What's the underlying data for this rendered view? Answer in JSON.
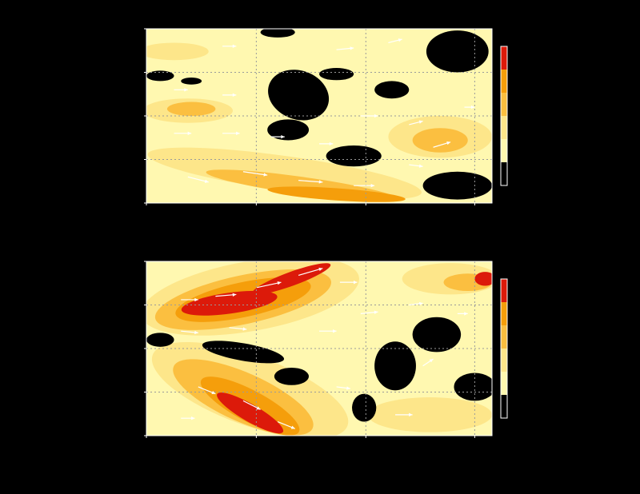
{
  "figure": {
    "background": "#000000"
  },
  "chart_data": [
    {
      "type": "heatmap",
      "panel": "top",
      "title": "",
      "xlabel": "",
      "ylabel": "",
      "xlim": [
        0,
        1
      ],
      "ylim": [
        0,
        1
      ],
      "grid": true,
      "levels": [
        0,
        1,
        2,
        3,
        4,
        5
      ],
      "colorbar": {
        "colors": [
          "#000000",
          "#fff8b0",
          "#fde68a",
          "#fbbf40",
          "#f59e0b",
          "#dc1a0a"
        ]
      },
      "palette": {
        "pale": "#fff8b0",
        "light": "#fde68a",
        "mid": "#fbbf40",
        "orange": "#f59e0b",
        "red": "#dc1a0a",
        "vector": "#ffffff"
      },
      "regions": [
        {
          "level": 2,
          "x": 0.12,
          "y": 0.47,
          "rx": 0.13,
          "ry": 0.07,
          "rot": 0
        },
        {
          "level": 2,
          "x": 0.08,
          "y": 0.13,
          "rx": 0.1,
          "ry": 0.05,
          "rot": 0
        },
        {
          "level": 2,
          "x": 0.85,
          "y": 0.62,
          "rx": 0.15,
          "ry": 0.12,
          "rot": 0
        },
        {
          "level": 2,
          "x": 0.4,
          "y": 0.83,
          "rx": 0.4,
          "ry": 0.1,
          "rot": 8
        },
        {
          "level": 3,
          "x": 0.13,
          "y": 0.46,
          "rx": 0.07,
          "ry": 0.04,
          "rot": 0
        },
        {
          "level": 3,
          "x": 0.85,
          "y": 0.64,
          "rx": 0.08,
          "ry": 0.07,
          "rot": 0
        },
        {
          "level": 3,
          "x": 0.45,
          "y": 0.9,
          "rx": 0.28,
          "ry": 0.05,
          "rot": 8
        },
        {
          "level": 4,
          "x": 0.55,
          "y": 0.95,
          "rx": 0.2,
          "ry": 0.035,
          "rot": 4
        },
        {
          "level": 0,
          "x": 0.44,
          "y": 0.38,
          "rx": 0.09,
          "ry": 0.14,
          "rot": 20
        },
        {
          "level": 0,
          "x": 0.41,
          "y": 0.58,
          "rx": 0.06,
          "ry": 0.06,
          "rot": 0
        },
        {
          "level": 0,
          "x": 0.6,
          "y": 0.73,
          "rx": 0.08,
          "ry": 0.06,
          "rot": 0
        },
        {
          "level": 0,
          "x": 0.9,
          "y": 0.13,
          "rx": 0.09,
          "ry": 0.12,
          "rot": 0
        },
        {
          "level": 0,
          "x": 0.9,
          "y": 0.9,
          "rx": 0.1,
          "ry": 0.08,
          "rot": 0
        },
        {
          "level": 0,
          "x": 0.71,
          "y": 0.35,
          "rx": 0.05,
          "ry": 0.05,
          "rot": 0
        },
        {
          "level": 0,
          "x": 0.38,
          "y": 0.02,
          "rx": 0.05,
          "ry": 0.03,
          "rot": 0
        },
        {
          "level": 0,
          "x": 0.04,
          "y": 0.27,
          "rx": 0.04,
          "ry": 0.03,
          "rot": 0
        },
        {
          "level": 0,
          "x": 0.13,
          "y": 0.3,
          "rx": 0.03,
          "ry": 0.02,
          "rot": 0
        },
        {
          "level": 0,
          "x": 0.55,
          "y": 0.26,
          "rx": 0.05,
          "ry": 0.035,
          "rot": 0
        }
      ],
      "vectors": [
        {
          "x": 0.08,
          "y": 0.6,
          "u": 0.05,
          "v": 0.0
        },
        {
          "x": 0.22,
          "y": 0.6,
          "u": 0.05,
          "v": 0.0
        },
        {
          "x": 0.36,
          "y": 0.62,
          "u": 0.04,
          "v": 0.0
        },
        {
          "x": 0.12,
          "y": 0.85,
          "u": 0.06,
          "v": 0.03
        },
        {
          "x": 0.28,
          "y": 0.82,
          "u": 0.07,
          "v": 0.02
        },
        {
          "x": 0.44,
          "y": 0.87,
          "u": 0.07,
          "v": 0.01
        },
        {
          "x": 0.6,
          "y": 0.9,
          "u": 0.06,
          "v": 0.0
        },
        {
          "x": 0.08,
          "y": 0.35,
          "u": 0.04,
          "v": 0.0
        },
        {
          "x": 0.22,
          "y": 0.38,
          "u": 0.04,
          "v": 0.0
        },
        {
          "x": 0.62,
          "y": 0.5,
          "u": 0.05,
          "v": 0.0
        },
        {
          "x": 0.76,
          "y": 0.55,
          "u": 0.04,
          "v": -0.02
        },
        {
          "x": 0.83,
          "y": 0.68,
          "u": 0.05,
          "v": -0.03
        },
        {
          "x": 0.7,
          "y": 0.08,
          "u": 0.04,
          "v": -0.02
        },
        {
          "x": 0.55,
          "y": 0.12,
          "u": 0.05,
          "v": -0.01
        },
        {
          "x": 0.22,
          "y": 0.1,
          "u": 0.04,
          "v": 0.0
        },
        {
          "x": 0.76,
          "y": 0.78,
          "u": 0.04,
          "v": 0.01
        },
        {
          "x": 0.92,
          "y": 0.45,
          "u": 0.03,
          "v": 0.0
        },
        {
          "x": 0.5,
          "y": 0.66,
          "u": 0.04,
          "v": 0.0
        }
      ],
      "colorbar_levels": 6
    },
    {
      "type": "heatmap",
      "panel": "bottom",
      "title": "",
      "xlabel": "",
      "ylabel": "",
      "xlim": [
        0,
        1
      ],
      "ylim": [
        0,
        1
      ],
      "grid": true,
      "levels": [
        0,
        1,
        2,
        3,
        4,
        5
      ],
      "colorbar": {
        "colors": [
          "#000000",
          "#fff8b0",
          "#fde68a",
          "#fbbf40",
          "#f59e0b",
          "#dc1a0a"
        ]
      },
      "palette": {
        "pale": "#fff8b0",
        "light": "#fde68a",
        "mid": "#fbbf40",
        "orange": "#f59e0b",
        "red": "#dc1a0a",
        "vector": "#ffffff"
      },
      "regions": [
        {
          "level": 2,
          "x": 0.3,
          "y": 0.2,
          "rx": 0.32,
          "ry": 0.2,
          "rot": -10
        },
        {
          "level": 2,
          "x": 0.3,
          "y": 0.74,
          "rx": 0.3,
          "ry": 0.2,
          "rot": 20
        },
        {
          "level": 2,
          "x": 0.88,
          "y": 0.1,
          "rx": 0.14,
          "ry": 0.09,
          "rot": 0
        },
        {
          "level": 2,
          "x": 0.82,
          "y": 0.88,
          "rx": 0.18,
          "ry": 0.1,
          "rot": 0
        },
        {
          "level": 3,
          "x": 0.28,
          "y": 0.22,
          "rx": 0.26,
          "ry": 0.14,
          "rot": -12
        },
        {
          "level": 3,
          "x": 0.28,
          "y": 0.78,
          "rx": 0.22,
          "ry": 0.14,
          "rot": 24
        },
        {
          "level": 3,
          "x": 0.93,
          "y": 0.12,
          "rx": 0.07,
          "ry": 0.05,
          "rot": 0
        },
        {
          "level": 4,
          "x": 0.28,
          "y": 0.22,
          "rx": 0.2,
          "ry": 0.1,
          "rot": -12
        },
        {
          "level": 4,
          "x": 0.3,
          "y": 0.83,
          "rx": 0.16,
          "ry": 0.09,
          "rot": 28
        },
        {
          "level": 5,
          "x": 0.24,
          "y": 0.24,
          "rx": 0.14,
          "ry": 0.06,
          "rot": -8
        },
        {
          "level": 5,
          "x": 0.42,
          "y": 0.1,
          "rx": 0.12,
          "ry": 0.04,
          "rot": -20
        },
        {
          "level": 5,
          "x": 0.3,
          "y": 0.87,
          "rx": 0.11,
          "ry": 0.05,
          "rot": 30
        },
        {
          "level": 5,
          "x": 0.98,
          "y": 0.1,
          "rx": 0.03,
          "ry": 0.04,
          "rot": 0
        },
        {
          "level": 0,
          "x": 0.72,
          "y": 0.6,
          "rx": 0.06,
          "ry": 0.14,
          "rot": 0
        },
        {
          "level": 0,
          "x": 0.84,
          "y": 0.42,
          "rx": 0.07,
          "ry": 0.1,
          "rot": 0
        },
        {
          "level": 0,
          "x": 0.28,
          "y": 0.52,
          "rx": 0.12,
          "ry": 0.05,
          "rot": 10
        },
        {
          "level": 0,
          "x": 0.42,
          "y": 0.66,
          "rx": 0.05,
          "ry": 0.05,
          "rot": 0
        },
        {
          "level": 0,
          "x": 0.63,
          "y": 0.84,
          "rx": 0.035,
          "ry": 0.08,
          "rot": 0
        },
        {
          "level": 0,
          "x": 0.95,
          "y": 0.72,
          "rx": 0.06,
          "ry": 0.08,
          "rot": 0
        },
        {
          "level": 0,
          "x": 0.04,
          "y": 0.45,
          "rx": 0.04,
          "ry": 0.04,
          "rot": 0
        }
      ],
      "vectors": [
        {
          "x": 0.2,
          "y": 0.2,
          "u": 0.06,
          "v": -0.01
        },
        {
          "x": 0.32,
          "y": 0.15,
          "u": 0.07,
          "v": -0.03
        },
        {
          "x": 0.44,
          "y": 0.08,
          "u": 0.07,
          "v": -0.04
        },
        {
          "x": 0.1,
          "y": 0.22,
          "u": 0.05,
          "v": 0.0
        },
        {
          "x": 0.56,
          "y": 0.12,
          "u": 0.05,
          "v": 0.0
        },
        {
          "x": 0.15,
          "y": 0.72,
          "u": 0.05,
          "v": 0.04
        },
        {
          "x": 0.28,
          "y": 0.8,
          "u": 0.05,
          "v": 0.05
        },
        {
          "x": 0.38,
          "y": 0.92,
          "u": 0.05,
          "v": 0.04
        },
        {
          "x": 0.1,
          "y": 0.4,
          "u": 0.05,
          "v": 0.01
        },
        {
          "x": 0.24,
          "y": 0.38,
          "u": 0.05,
          "v": 0.01
        },
        {
          "x": 0.5,
          "y": 0.4,
          "u": 0.05,
          "v": 0.0
        },
        {
          "x": 0.62,
          "y": 0.3,
          "u": 0.05,
          "v": -0.01
        },
        {
          "x": 0.76,
          "y": 0.25,
          "u": 0.04,
          "v": -0.01
        },
        {
          "x": 0.8,
          "y": 0.6,
          "u": 0.03,
          "v": -0.04
        },
        {
          "x": 0.9,
          "y": 0.3,
          "u": 0.03,
          "v": 0.0
        },
        {
          "x": 0.55,
          "y": 0.72,
          "u": 0.04,
          "v": 0.01
        },
        {
          "x": 0.72,
          "y": 0.88,
          "u": 0.05,
          "v": 0.0
        },
        {
          "x": 0.1,
          "y": 0.9,
          "u": 0.04,
          "v": 0.0
        }
      ],
      "colorbar_levels": 6
    }
  ]
}
